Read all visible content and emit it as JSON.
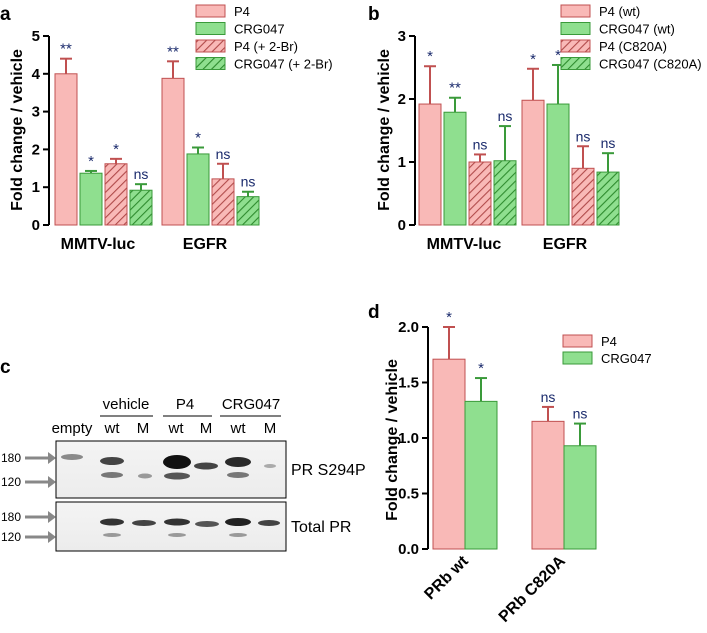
{
  "colors": {
    "pink": "#f9b9b7",
    "green": "#8fdf8f",
    "hatch_pink": "#b04a4a",
    "hatch_green": "#2e8b2e",
    "sig": "#1a2a6c",
    "axis": "#000000",
    "gray_arrow": "#888888"
  },
  "chart_data": [
    {
      "panel": "a",
      "type": "bar",
      "ylabel": "Fold change / vehicle",
      "ylim": [
        0,
        5
      ],
      "yticks": [
        "0",
        "1",
        "2",
        "3",
        "4",
        "5"
      ],
      "categories": [
        "MMTV-luc",
        "EGFR"
      ],
      "series": [
        {
          "name": "P4",
          "style": "pink",
          "values": [
            4.0,
            3.88
          ],
          "errors": [
            0.4,
            0.45
          ],
          "sig": [
            "**",
            "**"
          ]
        },
        {
          "name": "CRG047",
          "style": "green",
          "values": [
            1.37,
            1.88
          ],
          "errors": [
            0.06,
            0.17
          ],
          "sig": [
            "*",
            "*"
          ]
        },
        {
          "name": "P4 (+ 2-Br)",
          "style": "pink-hatch",
          "values": [
            1.62,
            1.22
          ],
          "errors": [
            0.13,
            0.4
          ],
          "sig": [
            "*",
            "ns"
          ]
        },
        {
          "name": "CRG047 (+ 2-Br)",
          "style": "green-hatch",
          "values": [
            0.92,
            0.75
          ],
          "errors": [
            0.16,
            0.13
          ],
          "sig": [
            "ns",
            "ns"
          ]
        }
      ]
    },
    {
      "panel": "b",
      "type": "bar",
      "ylabel": "Fold change / vehicle",
      "ylim": [
        0,
        3
      ],
      "yticks": [
        "0",
        "1",
        "2",
        "3"
      ],
      "categories": [
        "MMTV-luc",
        "EGFR"
      ],
      "series": [
        {
          "name": "P4 (wt)",
          "style": "pink",
          "values": [
            1.92,
            1.98
          ],
          "errors": [
            0.6,
            0.5
          ],
          "sig": [
            "*",
            "*"
          ]
        },
        {
          "name": "CRG047 (wt)",
          "style": "green",
          "values": [
            1.79,
            1.92
          ],
          "errors": [
            0.23,
            0.62
          ],
          "sig": [
            "**",
            "*"
          ]
        },
        {
          "name": "P4 (C820A)",
          "style": "pink-hatch",
          "values": [
            1.0,
            0.9
          ],
          "errors": [
            0.12,
            0.35
          ],
          "sig": [
            "ns",
            "ns"
          ]
        },
        {
          "name": "CRG047 (C820A)",
          "style": "green-hatch",
          "values": [
            1.02,
            0.84
          ],
          "errors": [
            0.55,
            0.3
          ],
          "sig": [
            "ns",
            "ns"
          ]
        }
      ]
    },
    {
      "panel": "d",
      "type": "bar",
      "ylabel": "Fold change / vehicle",
      "ylim": [
        0,
        2.0
      ],
      "yticks": [
        "0.0",
        "0.5",
        "1.0",
        "1.5",
        "2.0"
      ],
      "categories": [
        "PRb wt",
        "PRb C820A"
      ],
      "series": [
        {
          "name": "P4",
          "style": "pink",
          "values": [
            1.71,
            1.15
          ],
          "errors": [
            0.29,
            0.13
          ],
          "sig": [
            "*",
            "ns"
          ]
        },
        {
          "name": "CRG047",
          "style": "green",
          "values": [
            1.33,
            0.93
          ],
          "errors": [
            0.21,
            0.2
          ],
          "sig": [
            "*",
            "ns"
          ]
        }
      ]
    }
  ],
  "blot": {
    "panel": "c",
    "group_labels": [
      "vehicle",
      "P4",
      "CRG047"
    ],
    "lane_labels": [
      "empty",
      "wt",
      "M",
      "wt",
      "M",
      "wt",
      "M"
    ],
    "top_label": "PR S294P",
    "bottom_label": "Total PR",
    "mw_markers": [
      "180",
      "120"
    ]
  }
}
